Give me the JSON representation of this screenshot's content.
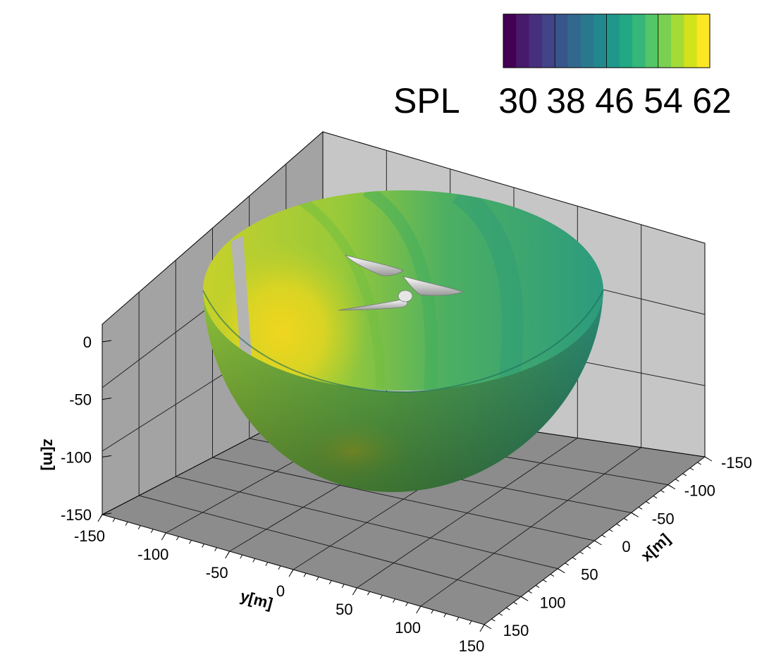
{
  "chart_data": {
    "type": "surface",
    "quantity": "SPL",
    "colormap": "viridis",
    "colorbar": {
      "label": "SPL",
      "tick_labels": [
        "30",
        "38",
        "46",
        "54",
        "62"
      ],
      "range": [
        30,
        62
      ],
      "levels": [
        30,
        32,
        34,
        36,
        38,
        40,
        42,
        44,
        46,
        48,
        50,
        52,
        54,
        56,
        58,
        60,
        62
      ],
      "colors": [
        "#440154",
        "#481a6c",
        "#472f7d",
        "#414487",
        "#39568c",
        "#31688e",
        "#2a788e",
        "#23888e",
        "#1f988b",
        "#22a884",
        "#35b779",
        "#54c568",
        "#7ad151",
        "#a5db36",
        "#d2e21b",
        "#fde725"
      ]
    },
    "axes": {
      "x": {
        "label": "x[m]",
        "ticks": [
          "-150",
          "-100",
          "-50",
          "0",
          "50",
          "100",
          "150"
        ],
        "range": [
          -150,
          150
        ]
      },
      "y": {
        "label": "y[m]",
        "ticks": [
          "-150",
          "-100",
          "-50",
          "0",
          "50",
          "100",
          "150"
        ],
        "range": [
          -150,
          150
        ]
      },
      "z": {
        "label": "z[m]",
        "ticks": [
          "0",
          "-50",
          "-100",
          "-150"
        ],
        "range": [
          -150,
          0
        ]
      }
    },
    "grid": true,
    "box_walls": "gray",
    "object": "hemispherical SPL surface around wind turbine rotor",
    "surface_colors": {
      "high": "#e2d81f",
      "mid": "#8fc43b",
      "low": "#2a9a80"
    }
  }
}
